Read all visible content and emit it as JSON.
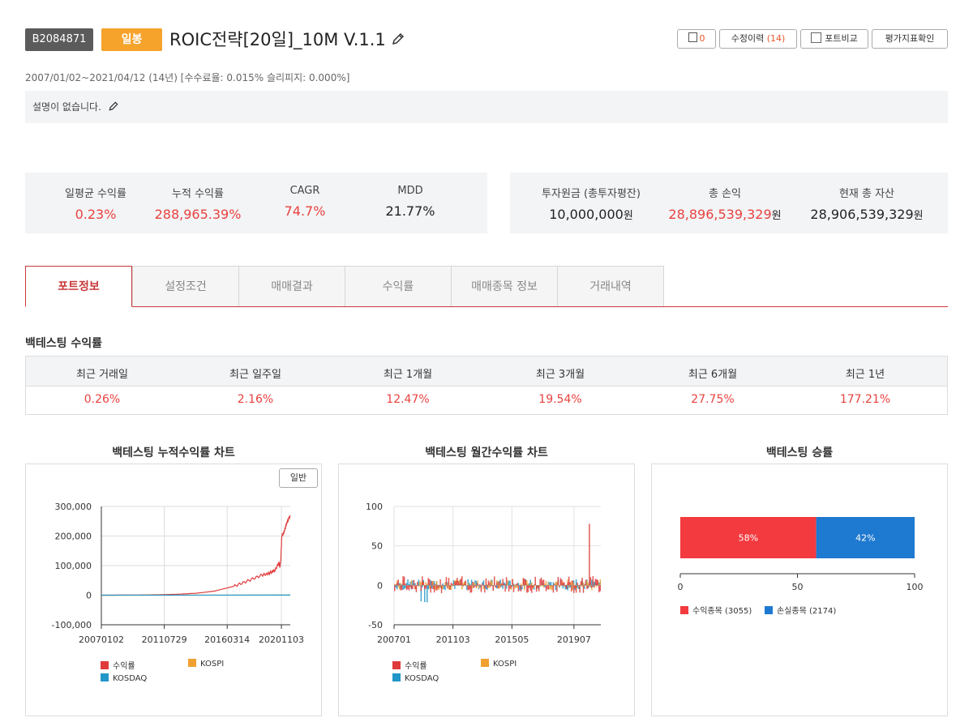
{
  "header": {
    "code": "B2084871",
    "type": "일봉",
    "title": "ROIC전략[20일]_10M V.1.1",
    "copy_count": "0",
    "history_label": "수정이력",
    "history_count": "(14)",
    "compare_label": "포트비교",
    "eval_label": "평가지표확인"
  },
  "period": "2007/01/02~2021/04/12 (14년) [수수료율: 0.015% 슬리피지: 0.000%]",
  "description": "설명이 없습니다.",
  "stats_left": [
    {
      "label": "일평균 수익률",
      "value": "0.23%"
    },
    {
      "label": "누적 수익률",
      "value": "288,965.39%"
    },
    {
      "label": "CAGR",
      "value": "74.7%"
    },
    {
      "label": "MDD",
      "value": "21.77%"
    }
  ],
  "stats_right": [
    {
      "label": "투자원금 (총투자평잔)",
      "value": "10,000,000",
      "unit": "원"
    },
    {
      "label": "총 손익",
      "value": "28,896,539,329",
      "unit": "원"
    },
    {
      "label": "현재 총 자산",
      "value": "28,906,539,329",
      "unit": "원"
    }
  ],
  "tabs": [
    {
      "label": "포트정보",
      "active": true
    },
    {
      "label": "설정조건"
    },
    {
      "label": "매매결과"
    },
    {
      "label": "수익률"
    },
    {
      "label": "매매종목 정보"
    },
    {
      "label": "거래내역"
    }
  ],
  "returns_title": "백테스팅 수익률",
  "returns": [
    {
      "label": "최근 거래일",
      "value": "0.26%"
    },
    {
      "label": "최근 일주일",
      "value": "2.16%"
    },
    {
      "label": "최근 1개월",
      "value": "12.47%"
    },
    {
      "label": "최근 3개월",
      "value": "19.54%"
    },
    {
      "label": "최근 6개월",
      "value": "27.75%"
    },
    {
      "label": "최근 1년",
      "value": "177.21%"
    }
  ],
  "panels": {
    "cumulative_title": "백테스팅 누적수익률 차트",
    "cumulative_button": "일반",
    "monthly_title": "백테스팅 월간수익률 차트",
    "winrate_title": "백테스팅 승률"
  },
  "chart_data": [
    {
      "type": "line",
      "yticks": [
        "300,000",
        "200,000",
        "100,000",
        "0",
        "-100,000"
      ],
      "xticks": [
        "20070102",
        "20110729",
        "20160314",
        "20201103"
      ],
      "ylim": [
        -100000,
        300000
      ],
      "series": [
        {
          "name": "수익률",
          "color": "#e03b3b",
          "points": [
            [
              0,
              0
            ],
            [
              0.1,
              200
            ],
            [
              0.2,
              600
            ],
            [
              0.3,
              1500
            ],
            [
              0.4,
              3000
            ],
            [
              0.5,
              6500
            ],
            [
              0.55,
              10000
            ],
            [
              0.6,
              14000
            ],
            [
              0.65,
              22000
            ],
            [
              0.7,
              30000
            ],
            [
              0.75,
              42000
            ],
            [
              0.8,
              55000
            ],
            [
              0.85,
              68000
            ],
            [
              0.88,
              72000
            ],
            [
              0.9,
              78000
            ],
            [
              0.92,
              85000
            ],
            [
              0.94,
              110000
            ],
            [
              0.945,
              95000
            ],
            [
              0.95,
              120000
            ],
            [
              0.955,
              200000
            ],
            [
              0.965,
              210000
            ],
            [
              0.975,
              230000
            ],
            [
              0.985,
              250000
            ],
            [
              1,
              270000
            ]
          ]
        },
        {
          "name": "KOSPI",
          "color": "#f0a030",
          "points": [
            [
              0,
              0
            ],
            [
              1,
              300
            ]
          ]
        },
        {
          "name": "KOSDAQ",
          "color": "#2196c8",
          "points": [
            [
              0,
              0
            ],
            [
              1,
              200
            ]
          ]
        }
      ]
    },
    {
      "type": "bar",
      "yticks": [
        "100",
        "50",
        "0",
        "-50"
      ],
      "xticks": [
        "200701",
        "201103",
        "201505",
        "201907"
      ],
      "ylim": [
        -50,
        100
      ],
      "spike": {
        "x": 0.94,
        "value": 78
      },
      "series": [
        {
          "name": "수익률",
          "color": "#e03b3b"
        },
        {
          "name": "KOSPI",
          "color": "#f0a030"
        },
        {
          "name": "KOSDAQ",
          "color": "#2196c8"
        }
      ]
    },
    {
      "type": "bar",
      "stacked": true,
      "xticks": [
        "0",
        "50",
        "100"
      ],
      "segments": [
        {
          "label": "58%",
          "value": 58,
          "color": "#f23a3f"
        },
        {
          "label": "42%",
          "value": 42,
          "color": "#1e79d0"
        }
      ],
      "legend": [
        {
          "name": "수익종목 (3055)",
          "color": "#f23a3f"
        },
        {
          "name": "손실종목 (2174)",
          "color": "#1e79d0"
        }
      ]
    }
  ]
}
